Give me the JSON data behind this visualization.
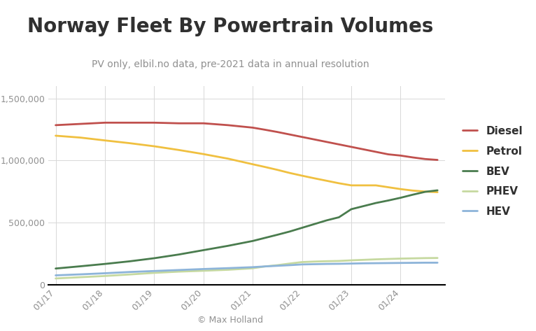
{
  "title": "Norway Fleet By Powertrain Volumes",
  "subtitle": "PV only, elbil.no data, pre-2021 data in annual resolution",
  "footer": "© Max Holland",
  "x_tick_positions": [
    2017,
    2018,
    2019,
    2020,
    2021,
    2022,
    2023,
    2024
  ],
  "x_values": [
    2017,
    2017.5,
    2018,
    2018.5,
    2019,
    2019.5,
    2020,
    2020.5,
    2021,
    2021.25,
    2021.5,
    2021.75,
    2022,
    2022.25,
    2022.5,
    2022.75,
    2023,
    2023.25,
    2023.5,
    2023.75,
    2024,
    2024.25,
    2024.5,
    2024.75
  ],
  "xlim": [
    2016.85,
    2024.9
  ],
  "series": {
    "Diesel": {
      "color": "#c0504d",
      "values": [
        1285000,
        1295000,
        1305000,
        1305000,
        1305000,
        1300000,
        1300000,
        1285000,
        1265000,
        1248000,
        1230000,
        1210000,
        1190000,
        1170000,
        1150000,
        1130000,
        1110000,
        1090000,
        1070000,
        1050000,
        1040000,
        1025000,
        1012000,
        1005000
      ]
    },
    "Petrol": {
      "color": "#f0c040",
      "values": [
        1200000,
        1185000,
        1162000,
        1140000,
        1115000,
        1085000,
        1052000,
        1015000,
        970000,
        948000,
        925000,
        900000,
        878000,
        857000,
        837000,
        817000,
        800000,
        800000,
        800000,
        785000,
        770000,
        758000,
        750000,
        745000
      ]
    },
    "BEV": {
      "color": "#4a7c4e",
      "values": [
        130000,
        148000,
        167000,
        188000,
        213000,
        243000,
        278000,
        313000,
        352000,
        377000,
        402000,
        428000,
        458000,
        488000,
        518000,
        543000,
        608000,
        633000,
        658000,
        678000,
        700000,
        725000,
        748000,
        760000
      ]
    },
    "PHEV": {
      "color": "#c6d9a0",
      "values": [
        50000,
        60000,
        70000,
        82000,
        95000,
        105000,
        112000,
        120000,
        132000,
        147000,
        157000,
        170000,
        182000,
        186000,
        189000,
        191000,
        196000,
        200000,
        204000,
        207000,
        210000,
        212000,
        214000,
        215000
      ]
    },
    "HEV": {
      "color": "#8db4d9",
      "values": [
        75000,
        83000,
        92000,
        102000,
        110000,
        118000,
        126000,
        133000,
        141000,
        147000,
        152000,
        157000,
        163000,
        165000,
        167000,
        168000,
        170000,
        172000,
        173000,
        174000,
        175000,
        176000,
        177000,
        177000
      ]
    }
  },
  "ylim": [
    0,
    1600000
  ],
  "yticks": [
    0,
    500000,
    1000000,
    1500000
  ],
  "background_color": "#ffffff",
  "grid_color": "#d8d8d8",
  "title_fontsize": 20,
  "subtitle_fontsize": 10,
  "title_color": "#303030",
  "subtitle_color": "#909090",
  "tick_label_color": "#909090",
  "footer_color": "#909090",
  "legend_fontsize": 11
}
